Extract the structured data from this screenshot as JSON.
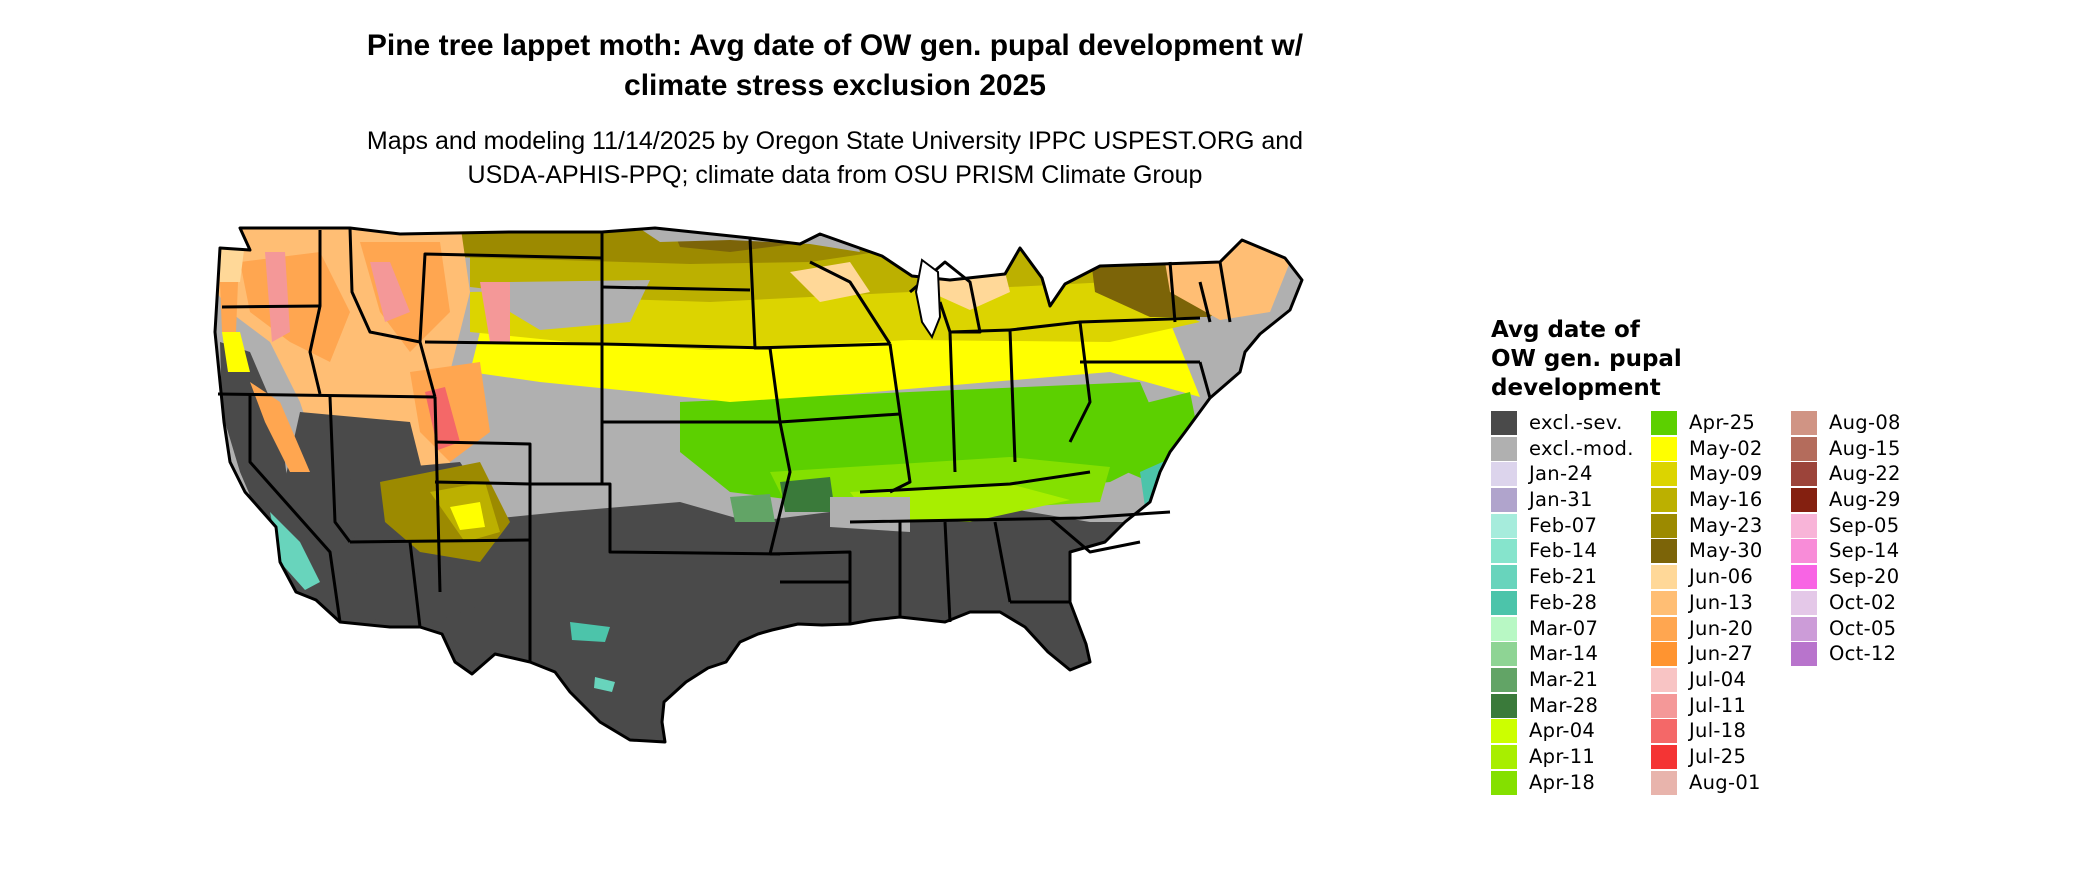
{
  "title_line1": "Pine tree lappet moth: Avg date of OW gen. pupal development w/",
  "title_line2": "climate stress exclusion 2025",
  "subtitle_line1": "Maps and modeling 11/14/2025 by Oregon State University IPPC USPEST.ORG and",
  "subtitle_line2": "USDA-APHIS-PPQ; climate data from OSU PRISM Climate Group",
  "legend": {
    "title_line1": "Avg date of",
    "title_line2": "OW gen. pupal",
    "title_line3": "development",
    "columns": [
      [
        {
          "label": "excl.-sev.",
          "color": "#4a4a4a"
        },
        {
          "label": "excl.-mod.",
          "color": "#b0b0b0"
        },
        {
          "label": "Jan-24",
          "color": "#dcd4ec"
        },
        {
          "label": "Jan-31",
          "color": "#b0a4cc"
        },
        {
          "label": "Feb-07",
          "color": "#a6ecdc"
        },
        {
          "label": "Feb-14",
          "color": "#86e4cc"
        },
        {
          "label": "Feb-21",
          "color": "#68d4bc"
        },
        {
          "label": "Feb-28",
          "color": "#4cc4aa"
        },
        {
          "label": "Mar-07",
          "color": "#b8f8c4"
        },
        {
          "label": "Mar-14",
          "color": "#8ed494"
        },
        {
          "label": "Mar-21",
          "color": "#62a466"
        },
        {
          "label": "Mar-28",
          "color": "#3a7a3a"
        },
        {
          "label": "Apr-04",
          "color": "#ccff00"
        },
        {
          "label": "Apr-11",
          "color": "#a8ee00"
        },
        {
          "label": "Apr-18",
          "color": "#84e000"
        }
      ],
      [
        {
          "label": "Apr-25",
          "color": "#5cd000"
        },
        {
          "label": "May-02",
          "color": "#ffff00"
        },
        {
          "label": "May-09",
          "color": "#dcd400"
        },
        {
          "label": "May-16",
          "color": "#bcb000"
        },
        {
          "label": "May-23",
          "color": "#9c8a00"
        },
        {
          "label": "May-30",
          "color": "#7c6408"
        },
        {
          "label": "Jun-06",
          "color": "#ffd898"
        },
        {
          "label": "Jun-13",
          "color": "#ffbe74"
        },
        {
          "label": "Jun-20",
          "color": "#ffa650"
        },
        {
          "label": "Jun-27",
          "color": "#ff9430"
        },
        {
          "label": "Jul-04",
          "color": "#f8c4c4"
        },
        {
          "label": "Jul-11",
          "color": "#f49898"
        },
        {
          "label": "Jul-18",
          "color": "#f46868"
        },
        {
          "label": "Jul-25",
          "color": "#f43434"
        },
        {
          "label": "Aug-01",
          "color": "#e8b4ac"
        }
      ],
      [
        {
          "label": "Aug-08",
          "color": "#d09484"
        },
        {
          "label": "Aug-15",
          "color": "#b46c5c"
        },
        {
          "label": "Aug-22",
          "color": "#9c443a"
        },
        {
          "label": "Aug-29",
          "color": "#842010"
        },
        {
          "label": "Sep-05",
          "color": "#f8b4d8"
        },
        {
          "label": "Sep-14",
          "color": "#f88cd8"
        },
        {
          "label": "Sep-20",
          "color": "#f864e4"
        },
        {
          "label": "Oct-02",
          "color": "#e4c8e8"
        },
        {
          "label": "Oct-05",
          "color": "#cc9cd8"
        },
        {
          "label": "Oct-12",
          "color": "#b874cc"
        }
      ]
    ]
  }
}
